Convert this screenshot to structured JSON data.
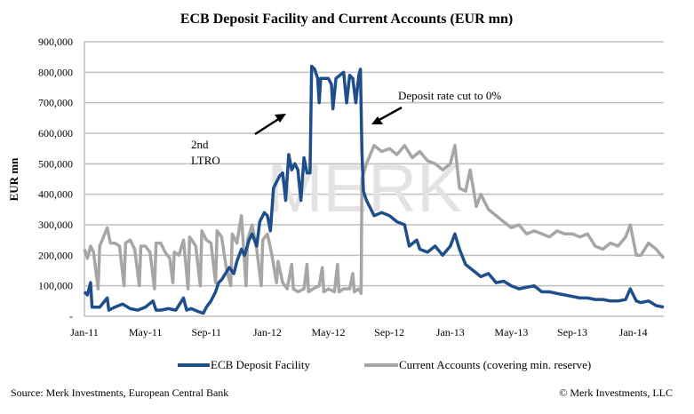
{
  "chart_data": {
    "type": "line",
    "title": "ECB Deposit Facility and Current Accounts (EUR mn)",
    "xlabel": "",
    "ylabel": "EUR mn",
    "x_unit": "months since Jan-11",
    "xlim": [
      0,
      38
    ],
    "ylim": [
      0,
      900000
    ],
    "y_ticks": [
      {
        "value": 0,
        "label": "-"
      },
      {
        "value": 100000,
        "label": "100,000"
      },
      {
        "value": 200000,
        "label": "200,000"
      },
      {
        "value": 300000,
        "label": "300,000"
      },
      {
        "value": 400000,
        "label": "400,000"
      },
      {
        "value": 500000,
        "label": "500,000"
      },
      {
        "value": 600000,
        "label": "600,000"
      },
      {
        "value": 700000,
        "label": "700,000"
      },
      {
        "value": 800000,
        "label": "800,000"
      },
      {
        "value": 900000,
        "label": "900,000"
      }
    ],
    "x_ticks": [
      {
        "value": 0,
        "label": "Jan-11"
      },
      {
        "value": 4,
        "label": "May-11"
      },
      {
        "value": 8,
        "label": "Sep-11"
      },
      {
        "value": 12,
        "label": "Jan-12"
      },
      {
        "value": 16,
        "label": "May-12"
      },
      {
        "value": 20,
        "label": "Sep-12"
      },
      {
        "value": 24,
        "label": "Jan-13"
      },
      {
        "value": 28,
        "label": "May-13"
      },
      {
        "value": 32,
        "label": "Sep-13"
      },
      {
        "value": 36,
        "label": "Jan-14"
      }
    ],
    "grid": true,
    "legend_position": "bottom",
    "series": [
      {
        "name": "ECB Deposit Facility",
        "color": "#1f4e8c",
        "points_thousands": [
          [
            0,
            80
          ],
          [
            0.2,
            70
          ],
          [
            0.4,
            110
          ],
          [
            0.5,
            30
          ],
          [
            1,
            30
          ],
          [
            1.5,
            60
          ],
          [
            1.6,
            20
          ],
          [
            2,
            30
          ],
          [
            2.5,
            40
          ],
          [
            3,
            25
          ],
          [
            3.5,
            20
          ],
          [
            4,
            30
          ],
          [
            4.5,
            50
          ],
          [
            4.7,
            20
          ],
          [
            5,
            20
          ],
          [
            5.5,
            25
          ],
          [
            6,
            20
          ],
          [
            6.5,
            60
          ],
          [
            6.7,
            20
          ],
          [
            7,
            25
          ],
          [
            7.5,
            15
          ],
          [
            7.8,
            10
          ],
          [
            8,
            30
          ],
          [
            8.3,
            50
          ],
          [
            8.6,
            80
          ],
          [
            8.8,
            110
          ],
          [
            9,
            120
          ],
          [
            9.5,
            160
          ],
          [
            9.8,
            140
          ],
          [
            10,
            180
          ],
          [
            10.3,
            220
          ],
          [
            10.5,
            200
          ],
          [
            10.8,
            250
          ],
          [
            11,
            270
          ],
          [
            11.3,
            230
          ],
          [
            11.5,
            310
          ],
          [
            11.8,
            340
          ],
          [
            12,
            330
          ],
          [
            12.2,
            280
          ],
          [
            12.4,
            420
          ],
          [
            12.8,
            460
          ],
          [
            13,
            470
          ],
          [
            13.2,
            380
          ],
          [
            13.4,
            530
          ],
          [
            13.6,
            480
          ],
          [
            13.8,
            500
          ],
          [
            14,
            480
          ],
          [
            14.2,
            380
          ],
          [
            14.4,
            520
          ],
          [
            14.6,
            470
          ],
          [
            14.8,
            470
          ],
          [
            14.9,
            820
          ],
          [
            15.1,
            810
          ],
          [
            15.3,
            780
          ],
          [
            15.4,
            700
          ],
          [
            15.5,
            780
          ],
          [
            16,
            780
          ],
          [
            16.2,
            760
          ],
          [
            16.3,
            680
          ],
          [
            16.5,
            780
          ],
          [
            17,
            800
          ],
          [
            17.2,
            700
          ],
          [
            17.4,
            790
          ],
          [
            17.6,
            780
          ],
          [
            17.8,
            700
          ],
          [
            18,
            790
          ],
          [
            18.1,
            810
          ],
          [
            18.2,
            540
          ],
          [
            18.3,
            410
          ],
          [
            18.5,
            380
          ],
          [
            18.8,
            350
          ],
          [
            19,
            330
          ],
          [
            19.5,
            340
          ],
          [
            20,
            330
          ],
          [
            20.5,
            310
          ],
          [
            21,
            300
          ],
          [
            21.3,
            230
          ],
          [
            21.8,
            250
          ],
          [
            22,
            220
          ],
          [
            22.5,
            210
          ],
          [
            23,
            230
          ],
          [
            23.5,
            200
          ],
          [
            24,
            230
          ],
          [
            24.3,
            270
          ],
          [
            24.6,
            220
          ],
          [
            25,
            170
          ],
          [
            25.5,
            150
          ],
          [
            26,
            130
          ],
          [
            26.5,
            140
          ],
          [
            27,
            110
          ],
          [
            27.5,
            115
          ],
          [
            28,
            100
          ],
          [
            28.5,
            90
          ],
          [
            29,
            95
          ],
          [
            29.5,
            100
          ],
          [
            30,
            80
          ],
          [
            30.5,
            80
          ],
          [
            31,
            75
          ],
          [
            31.5,
            70
          ],
          [
            32,
            65
          ],
          [
            32.5,
            60
          ],
          [
            33,
            60
          ],
          [
            33.5,
            55
          ],
          [
            34,
            55
          ],
          [
            34.5,
            50
          ],
          [
            35,
            50
          ],
          [
            35.5,
            55
          ],
          [
            35.8,
            90
          ],
          [
            36.2,
            50
          ],
          [
            36.5,
            45
          ],
          [
            37,
            50
          ],
          [
            37.5,
            35
          ],
          [
            38,
            30
          ]
        ]
      },
      {
        "name": "Current Accounts (covering min. reserve)",
        "color": "#a6a6a6",
        "points_thousands": [
          [
            0,
            220
          ],
          [
            0.2,
            190
          ],
          [
            0.4,
            230
          ],
          [
            0.6,
            210
          ],
          [
            0.9,
            90
          ],
          [
            1,
            230
          ],
          [
            1.5,
            290
          ],
          [
            1.7,
            240
          ],
          [
            2,
            240
          ],
          [
            2.3,
            230
          ],
          [
            2.6,
            100
          ],
          [
            2.7,
            240
          ],
          [
            3,
            250
          ],
          [
            3.3,
            220
          ],
          [
            3.6,
            100
          ],
          [
            3.7,
            230
          ],
          [
            4,
            230
          ],
          [
            4.3,
            210
          ],
          [
            4.6,
            90
          ],
          [
            4.7,
            240
          ],
          [
            5,
            240
          ],
          [
            5.3,
            210
          ],
          [
            5.6,
            190
          ],
          [
            5.8,
            110
          ],
          [
            5.9,
            210
          ],
          [
            6.2,
            200
          ],
          [
            6.5,
            250
          ],
          [
            6.8,
            90
          ],
          [
            6.9,
            260
          ],
          [
            7.3,
            230
          ],
          [
            7.6,
            100
          ],
          [
            7.7,
            280
          ],
          [
            8,
            250
          ],
          [
            8.3,
            240
          ],
          [
            8.6,
            110
          ],
          [
            8.7,
            280
          ],
          [
            9,
            260
          ],
          [
            9.3,
            160
          ],
          [
            9.6,
            100
          ],
          [
            9.7,
            270
          ],
          [
            10,
            240
          ],
          [
            10.3,
            330
          ],
          [
            10.6,
            100
          ],
          [
            10.7,
            250
          ],
          [
            11,
            300
          ],
          [
            11.3,
            220
          ],
          [
            11.6,
            100
          ],
          [
            11.7,
            250
          ],
          [
            12,
            270
          ],
          [
            12.3,
            200
          ],
          [
            12.6,
            110
          ],
          [
            12.7,
            180
          ],
          [
            13,
            110
          ],
          [
            13.3,
            90
          ],
          [
            13.6,
            170
          ],
          [
            13.7,
            90
          ],
          [
            14,
            80
          ],
          [
            14.4,
            90
          ],
          [
            14.6,
            170
          ],
          [
            14.7,
            80
          ],
          [
            15,
            90
          ],
          [
            15.4,
            100
          ],
          [
            15.6,
            160
          ],
          [
            15.7,
            80
          ],
          [
            16,
            90
          ],
          [
            16.4,
            80
          ],
          [
            16.6,
            170
          ],
          [
            16.7,
            80
          ],
          [
            17,
            90
          ],
          [
            17.4,
            90
          ],
          [
            17.6,
            140
          ],
          [
            17.7,
            80
          ],
          [
            18,
            90
          ],
          [
            18.15,
            75
          ],
          [
            18.2,
            450
          ],
          [
            18.5,
            500
          ],
          [
            19,
            560
          ],
          [
            19.5,
            540
          ],
          [
            20,
            550
          ],
          [
            20.5,
            530
          ],
          [
            21,
            560
          ],
          [
            21.5,
            520
          ],
          [
            22,
            540
          ],
          [
            22.5,
            510
          ],
          [
            23,
            500
          ],
          [
            23.5,
            480
          ],
          [
            24,
            500
          ],
          [
            24.3,
            560
          ],
          [
            24.6,
            420
          ],
          [
            25,
            410
          ],
          [
            25.3,
            480
          ],
          [
            25.7,
            360
          ],
          [
            26,
            400
          ],
          [
            26.5,
            350
          ],
          [
            27,
            330
          ],
          [
            27.5,
            310
          ],
          [
            28,
            290
          ],
          [
            28.5,
            300
          ],
          [
            29,
            270
          ],
          [
            29.5,
            280
          ],
          [
            30,
            270
          ],
          [
            30.5,
            260
          ],
          [
            31,
            280
          ],
          [
            31.5,
            270
          ],
          [
            32,
            270
          ],
          [
            32.5,
            260
          ],
          [
            33,
            270
          ],
          [
            33.5,
            230
          ],
          [
            34,
            220
          ],
          [
            34.5,
            240
          ],
          [
            35,
            230
          ],
          [
            35.5,
            260
          ],
          [
            35.8,
            300
          ],
          [
            36.2,
            200
          ],
          [
            36.5,
            200
          ],
          [
            37,
            240
          ],
          [
            37.5,
            220
          ],
          [
            38,
            190
          ]
        ]
      }
    ],
    "annotations": [
      {
        "text_lines": [
          "2nd",
          "LTRO"
        ]
      },
      {
        "text": "Deposit rate cut to 0%"
      }
    ],
    "watermark": "MERK"
  },
  "footer": {
    "source": "Source: Merk Investments, European Central Bank",
    "copyright": "© Merk Investments, LLC"
  }
}
